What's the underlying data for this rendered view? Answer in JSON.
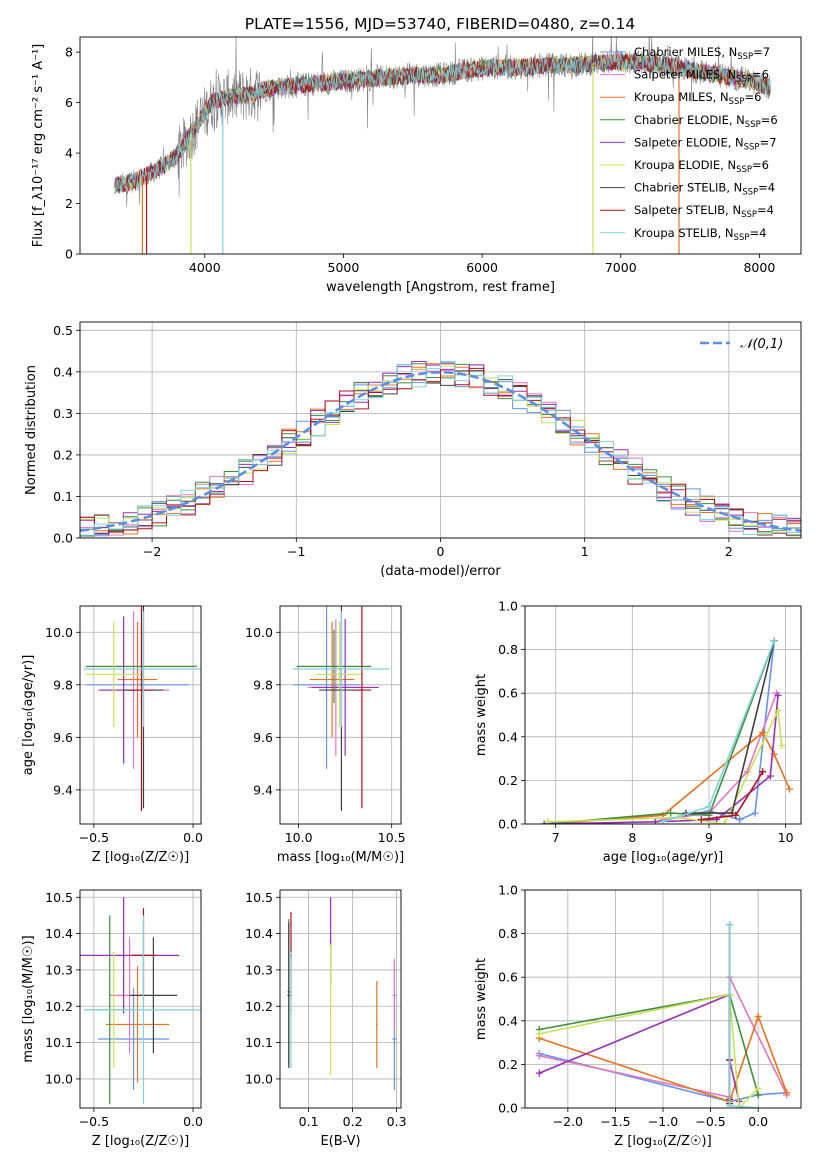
{
  "title": "PLATE=1556, MJD=53740, FIBERID=0480, z=0.14",
  "colors": {
    "chabrier_miles": "#6495ed",
    "salpeter_miles": "#e377c2",
    "kroupa_miles": "#e8731e",
    "chabrier_elodie": "#3f8f3f",
    "salpeter_elodie": "#9a2fb8",
    "kroupa_elodie": "#c8e05a",
    "chabrier_stelib": "#404040",
    "salpeter_stelib": "#b0101e",
    "kroupa_stelib": "#7fd3dc",
    "data_spectrum": "#808080",
    "gaussian": "#5b8ee6"
  },
  "chart_data": [
    {
      "id": "spectrum",
      "type": "line",
      "xlabel": "wavelength [Angstrom, rest frame]",
      "ylabel": "Flux [f_λ10⁻¹⁷ erg cm⁻² s⁻¹ A⁻¹]",
      "xlim": [
        3100,
        8300
      ],
      "ylim": [
        0,
        8.6
      ],
      "xticks": [
        "4000",
        "5000",
        "6000",
        "7000",
        "8000"
      ],
      "yticks": [
        "0",
        "2",
        "4",
        "6",
        "8"
      ],
      "continuum": {
        "x": [
          3350,
          3500,
          3650,
          3800,
          3950,
          4050,
          4150,
          4300,
          4500,
          4700,
          4900,
          5100,
          5300,
          5500,
          5700,
          5900,
          6100,
          6300,
          6500,
          6700,
          6900,
          7100,
          7300,
          7500,
          7700,
          7900,
          8080
        ],
        "y": [
          2.7,
          2.9,
          3.3,
          3.9,
          5.2,
          6.0,
          6.2,
          6.3,
          6.6,
          6.7,
          6.8,
          6.9,
          7.0,
          7.1,
          7.1,
          7.3,
          7.4,
          7.4,
          7.5,
          7.5,
          7.6,
          7.6,
          7.5,
          7.3,
          7.1,
          6.9,
          6.6
        ]
      },
      "legend": [
        "Chabrier MILES, N_SSP=7",
        "Salpeter MILES, N_SSP=6",
        "Kroupa MILES, N_SSP=6",
        "Chabrier ELODIE, N_SSP=6",
        "Salpeter ELODIE, N_SSP=7",
        "Kroupa ELODIE, N_SSP=6",
        "Chabrier STELIB, N_SSP=4",
        "Salpeter STELIB, N_SSP=4",
        "Kroupa STELIB, N_SSP=4"
      ]
    },
    {
      "id": "residuals",
      "type": "line",
      "xlabel": "(data-model)/error",
      "ylabel": "Normed distribution",
      "xlim": [
        -2.5,
        2.5
      ],
      "ylim": [
        0,
        0.52
      ],
      "xticks": [
        "−2",
        "−1",
        "0",
        "1",
        "2"
      ],
      "yticks": [
        "0.0",
        "0.1",
        "0.2",
        "0.3",
        "0.4",
        "0.5"
      ],
      "legend": "𝒩(0,1)"
    },
    {
      "id": "age_vs_Z",
      "type": "scatter",
      "xlabel": "Z [log₁₀(Z/Z☉)]",
      "ylabel": "age  [log₁₀(age/yr)]",
      "xlim": [
        -0.57,
        0.04
      ],
      "ylim": [
        9.27,
        10.1
      ],
      "xticks": [
        "−0.5",
        "0.0"
      ],
      "yticks": [
        "9.4",
        "9.6",
        "9.8",
        "10.0"
      ]
    },
    {
      "id": "age_vs_mass",
      "type": "scatter",
      "xlabel": "mass [log₁₀(M/M☉)]",
      "ylabel": "",
      "xlim": [
        9.9,
        10.55
      ],
      "ylim": [
        9.27,
        10.1
      ],
      "xticks": [
        "10.0",
        "10.5"
      ],
      "yticks": [
        "9.4",
        "9.6",
        "9.8",
        "10.0"
      ]
    },
    {
      "id": "weight_vs_age",
      "type": "line",
      "xlabel": "age  [log₁₀(age/yr)]",
      "ylabel": "mass weight",
      "xlim": [
        6.6,
        10.2
      ],
      "ylim": [
        0,
        1.0
      ],
      "xticks": [
        "7",
        "8",
        "9",
        "10"
      ],
      "yticks": [
        "0.0",
        "0.2",
        "0.4",
        "0.6",
        "0.8",
        "1.0"
      ]
    },
    {
      "id": "mass_vs_Z",
      "type": "scatter",
      "xlabel": "Z [log₁₀(Z/Z☉)]",
      "ylabel": "mass [log₁₀(M/M☉)]",
      "xlim": [
        -0.57,
        0.04
      ],
      "ylim": [
        9.92,
        10.52
      ],
      "xticks": [
        "−0.5",
        "0.0"
      ],
      "yticks": [
        "10.0",
        "10.1",
        "10.2",
        "10.3",
        "10.4",
        "10.5"
      ]
    },
    {
      "id": "mass_vs_ebv",
      "type": "scatter",
      "xlabel": "E(B-V)",
      "ylabel": "",
      "xlim": [
        0.035,
        0.31
      ],
      "ylim": [
        9.92,
        10.52
      ],
      "xticks": [
        "0.1",
        "0.2",
        "0.3"
      ],
      "yticks": [
        "10.0",
        "10.1",
        "10.2",
        "10.3",
        "10.4",
        "10.5"
      ]
    },
    {
      "id": "weight_vs_Z",
      "type": "line",
      "xlabel": "Z [log₁₀(Z/Z☉)]",
      "ylabel": "mass weight",
      "xlim": [
        -2.45,
        0.45
      ],
      "ylim": [
        0,
        1.0
      ],
      "xticks": [
        "−2.0",
        "−1.5",
        "−1.0",
        "−0.5",
        "0.0"
      ],
      "yticks": [
        "0.0",
        "0.2",
        "0.4",
        "0.6",
        "0.8",
        "1.0"
      ]
    }
  ]
}
